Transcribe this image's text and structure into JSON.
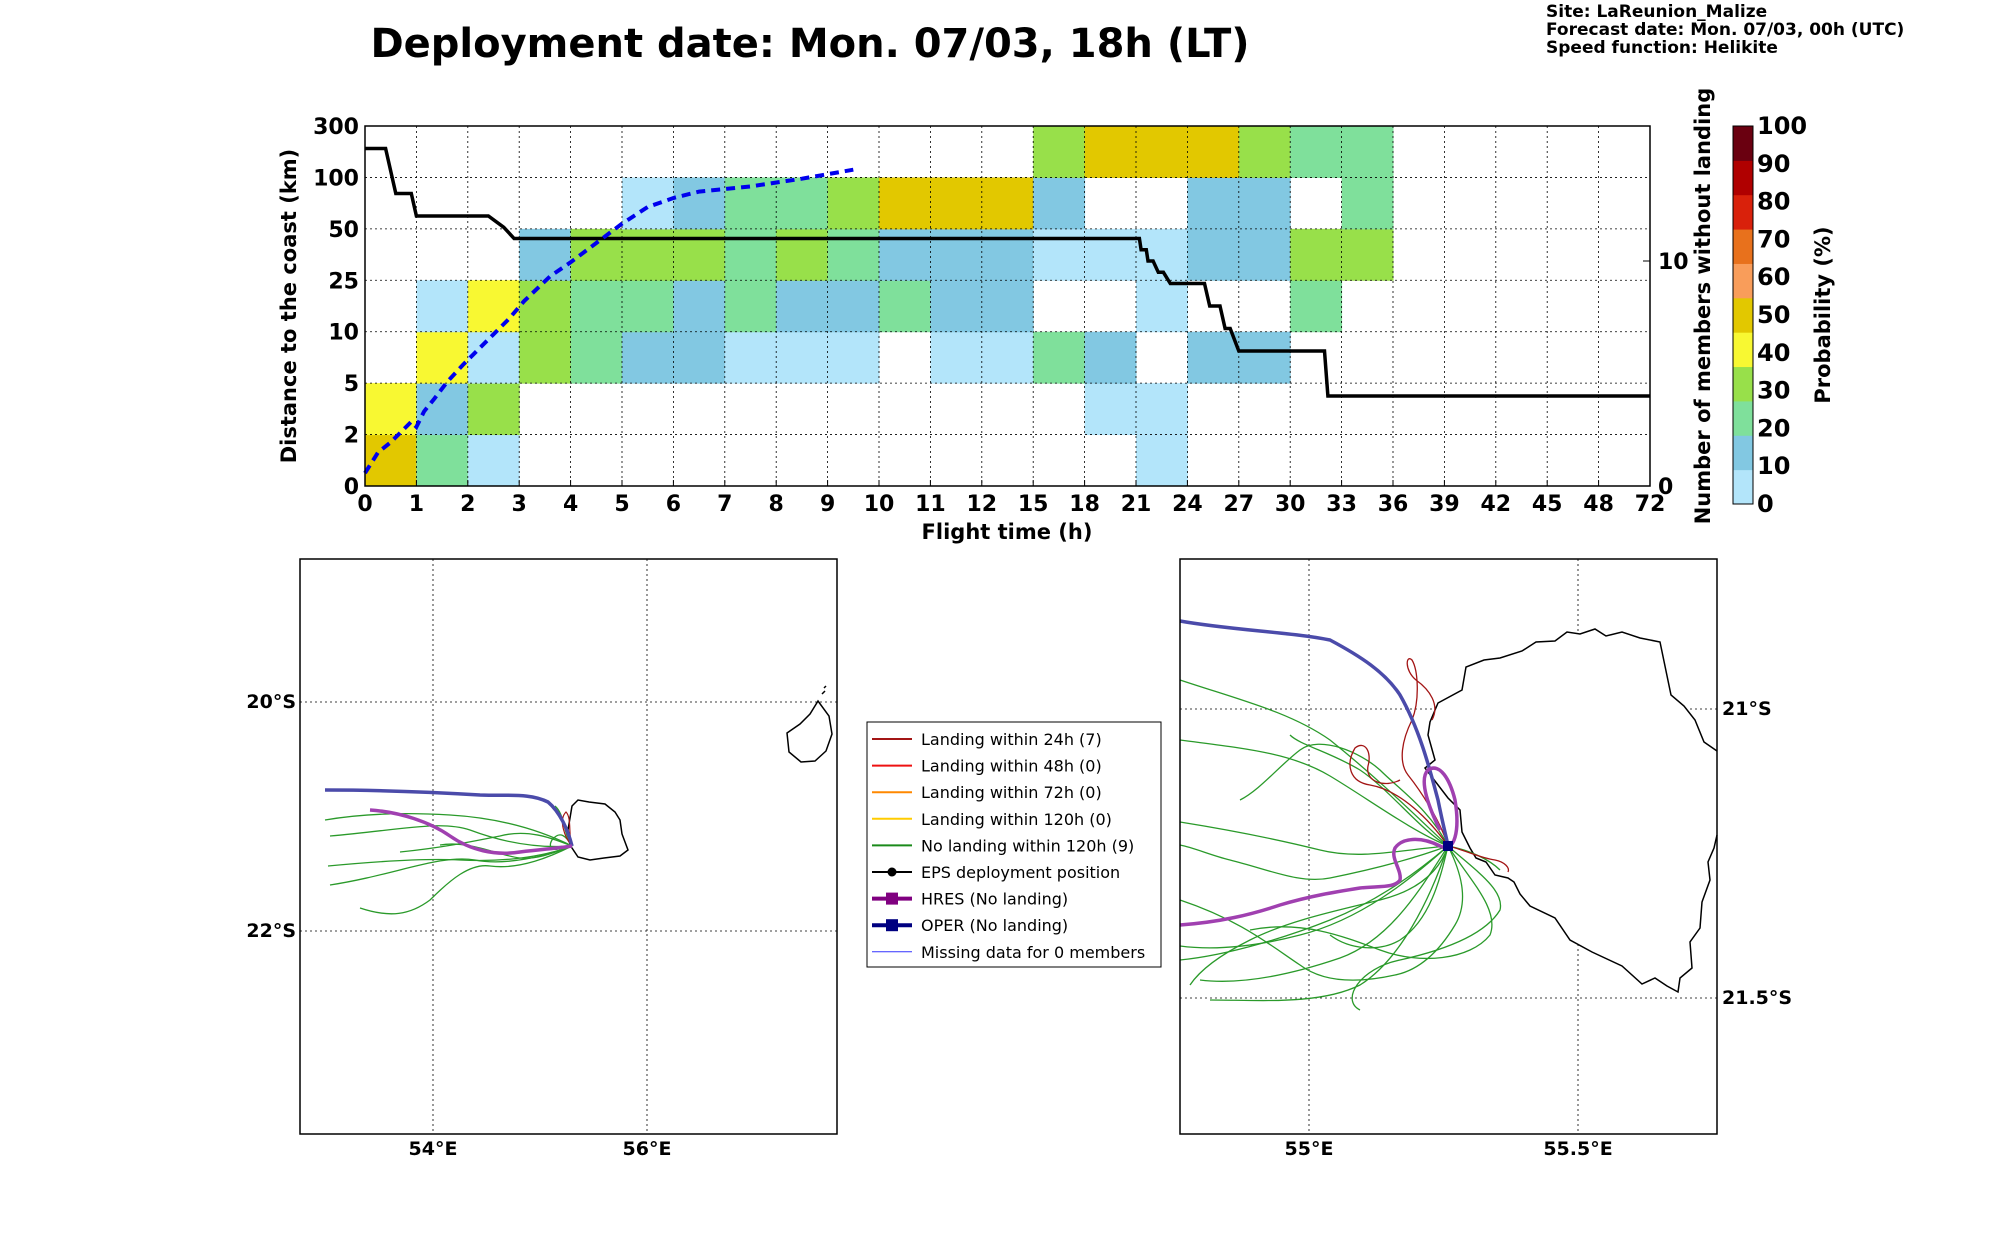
{
  "header": {
    "title": "Deployment date: Mon. 07/03, 18h (LT)",
    "info": [
      "Site: LaReunion_Malize",
      "Forecast date: Mon. 07/03, 00h (UTC)",
      "Speed function: Helikite"
    ]
  },
  "chart_data": [
    {
      "type": "heatmap",
      "xlabel": "Flight time (h)",
      "ylabel": "Distance to the coast (km)",
      "y2label": "Number of members without landing",
      "x_ticks": [
        "0",
        "1",
        "2",
        "3",
        "4",
        "5",
        "6",
        "7",
        "8",
        "9",
        "10",
        "11",
        "12",
        "15",
        "18",
        "21",
        "24",
        "27",
        "30",
        "33",
        "36",
        "39",
        "42",
        "45",
        "48",
        "72"
      ],
      "y_ticks": [
        "0",
        "2",
        "5",
        "10",
        "25",
        "50",
        "100",
        "300"
      ],
      "y2_ticks": [
        "0",
        "10"
      ],
      "y2_range": [
        0,
        16
      ],
      "colorbar": {
        "label": "Probability (%)",
        "ticks": [
          "0",
          "10",
          "20",
          "30",
          "40",
          "50",
          "60",
          "70",
          "80",
          "90",
          "100"
        ],
        "colors": [
          "#b3e5fa",
          "#82c8e2",
          "#7fe09b",
          "#98e04a",
          "#f8f832",
          "#e2c800",
          "#f99d5a",
          "#e8711c",
          "#d9210b",
          "#b00000",
          "#6a0010"
        ]
      },
      "cells": [
        [
          0,
          0,
          5
        ],
        [
          0,
          1,
          4
        ],
        [
          1,
          0,
          2
        ],
        [
          1,
          1,
          1
        ],
        [
          1,
          2,
          4
        ],
        [
          1,
          3,
          0
        ],
        [
          2,
          0,
          0
        ],
        [
          2,
          1,
          3
        ],
        [
          2,
          2,
          0
        ],
        [
          2,
          3,
          4
        ],
        [
          3,
          2,
          3
        ],
        [
          3,
          3,
          3
        ],
        [
          3,
          4,
          1
        ],
        [
          4,
          2,
          2
        ],
        [
          4,
          3,
          2
        ],
        [
          4,
          4,
          3
        ],
        [
          5,
          2,
          1
        ],
        [
          5,
          3,
          2
        ],
        [
          5,
          4,
          3
        ],
        [
          5,
          5,
          0
        ],
        [
          6,
          2,
          1
        ],
        [
          6,
          3,
          1
        ],
        [
          6,
          4,
          3
        ],
        [
          6,
          5,
          1
        ],
        [
          7,
          2,
          0
        ],
        [
          7,
          3,
          2
        ],
        [
          7,
          4,
          2
        ],
        [
          7,
          5,
          2
        ],
        [
          8,
          2,
          0
        ],
        [
          8,
          3,
          1
        ],
        [
          8,
          4,
          3
        ],
        [
          8,
          5,
          2
        ],
        [
          9,
          2,
          0
        ],
        [
          9,
          3,
          1
        ],
        [
          9,
          4,
          2
        ],
        [
          9,
          5,
          3
        ],
        [
          10,
          3,
          2
        ],
        [
          10,
          4,
          1
        ],
        [
          10,
          5,
          5
        ],
        [
          11,
          2,
          0
        ],
        [
          11,
          3,
          1
        ],
        [
          11,
          4,
          1
        ],
        [
          11,
          5,
          5
        ],
        [
          12,
          2,
          0
        ],
        [
          12,
          3,
          1
        ],
        [
          12,
          4,
          1
        ],
        [
          12,
          5,
          5
        ],
        [
          13,
          2,
          2
        ],
        [
          13,
          4,
          0
        ],
        [
          13,
          5,
          1
        ],
        [
          13,
          6,
          3
        ],
        [
          14,
          1,
          0
        ],
        [
          14,
          2,
          1
        ],
        [
          14,
          4,
          0
        ],
        [
          14,
          6,
          5
        ],
        [
          15,
          0,
          0
        ],
        [
          15,
          1,
          0
        ],
        [
          15,
          3,
          0
        ],
        [
          15,
          4,
          0
        ],
        [
          15,
          6,
          5
        ],
        [
          16,
          2,
          1
        ],
        [
          16,
          4,
          1
        ],
        [
          16,
          5,
          1
        ],
        [
          16,
          6,
          5
        ],
        [
          17,
          2,
          1
        ],
        [
          17,
          4,
          1
        ],
        [
          17,
          5,
          1
        ],
        [
          17,
          6,
          3
        ],
        [
          18,
          3,
          2
        ],
        [
          18,
          4,
          3
        ],
        [
          18,
          6,
          2
        ],
        [
          19,
          4,
          3
        ],
        [
          19,
          5,
          2
        ],
        [
          19,
          6,
          2
        ]
      ],
      "series": [
        {
          "name": "",
          "style": "black-step",
          "axis": "y2",
          "x": [
            0,
            0.4,
            0.6,
            0.9,
            1,
            2.4,
            2.7,
            2.9,
            3,
            21.2,
            21.3,
            21.6,
            21.7,
            22,
            22.3,
            22.6,
            23,
            25,
            25.3,
            25.9,
            26.2,
            26.5,
            27,
            32,
            32.2,
            72
          ],
          "y": [
            15,
            15,
            13,
            13,
            12,
            12,
            11.5,
            11,
            11,
            11,
            10.5,
            10.5,
            10,
            10,
            9.5,
            9.5,
            9,
            9,
            8,
            8,
            7,
            7,
            6,
            6,
            4,
            4
          ]
        },
        {
          "name": "",
          "style": "blue-dashed",
          "axis": "y",
          "x": [
            0,
            0.25,
            0.5,
            0.7,
            0.9,
            1,
            1.15,
            1.35,
            1.6,
            1.9,
            2.2,
            2.5,
            2.8,
            3.1,
            3.6,
            4,
            4.5,
            5,
            5.5,
            6,
            6.5,
            7.5,
            8.5,
            9.5
          ],
          "y": [
            1,
            2.6,
            3.4,
            4.2,
            5,
            4.6,
            5.8,
            6.8,
            8.1,
            9.4,
            10.6,
            11.8,
            13,
            14.4,
            16.3,
            17.4,
            18.9,
            20.4,
            21.7,
            22.4,
            22.9,
            23.3,
            23.9,
            24.6
          ]
        }
      ]
    },
    {
      "type": "map",
      "lon_ticks": [
        "54°E",
        "56°E"
      ],
      "lat_ticks": [
        "20°S",
        "22°S"
      ]
    },
    {
      "type": "map",
      "lon_ticks": [
        "55°E",
        "55.5°E"
      ],
      "lat_ticks": [
        "21°S",
        "21.5°S"
      ]
    }
  ],
  "legend": {
    "items": [
      {
        "label": "Landing within 24h (7)",
        "color": "#a31515",
        "marker": "none",
        "width": 2
      },
      {
        "label": "Landing within 48h (0)",
        "color": "#ee1111",
        "marker": "none",
        "width": 2
      },
      {
        "label": "Landing within 72h (0)",
        "color": "#ff8800",
        "marker": "none",
        "width": 2
      },
      {
        "label": "Landing within 120h (0)",
        "color": "#ffcc00",
        "marker": "none",
        "width": 2
      },
      {
        "label": "No landing within 120h (9)",
        "color": "#1a8a1a",
        "marker": "none",
        "width": 2
      },
      {
        "label": "EPS deployment position",
        "color": "#000000",
        "marker": "circle",
        "width": 2
      },
      {
        "label": "HRES (No landing)",
        "color": "#800080",
        "marker": "square",
        "width": 4
      },
      {
        "label": "OPER (No landing)",
        "color": "#000080",
        "marker": "square",
        "width": 4
      },
      {
        "label": "Missing data for 0 members",
        "color": "#3333ff",
        "marker": "none",
        "width": 1
      }
    ]
  }
}
